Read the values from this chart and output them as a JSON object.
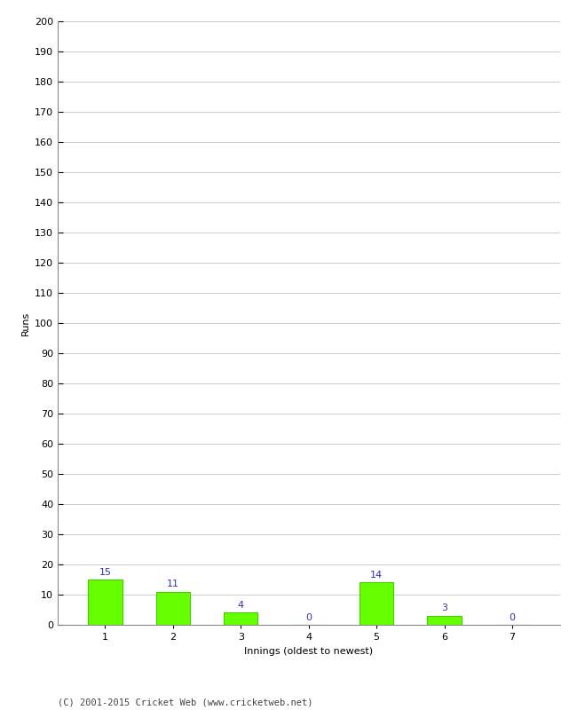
{
  "innings": [
    1,
    2,
    3,
    4,
    5,
    6,
    7
  ],
  "runs": [
    15,
    11,
    4,
    0,
    14,
    3,
    0
  ],
  "bar_color": "#66ff00",
  "bar_edge_color": "#44cc00",
  "label_color": "#3333aa",
  "xlabel": "Innings (oldest to newest)",
  "ylabel": "Runs",
  "ylim": [
    0,
    200
  ],
  "yticks": [
    0,
    10,
    20,
    30,
    40,
    50,
    60,
    70,
    80,
    90,
    100,
    110,
    120,
    130,
    140,
    150,
    160,
    170,
    180,
    190,
    200
  ],
  "background_color": "#ffffff",
  "grid_color": "#cccccc",
  "footer": "(C) 2001-2015 Cricket Web (www.cricketweb.net)",
  "label_fontsize": 8,
  "tick_fontsize": 8,
  "footer_fontsize": 7.5,
  "xlabel_fontsize": 8,
  "ylabel_fontsize": 8,
  "bar_width": 0.5
}
